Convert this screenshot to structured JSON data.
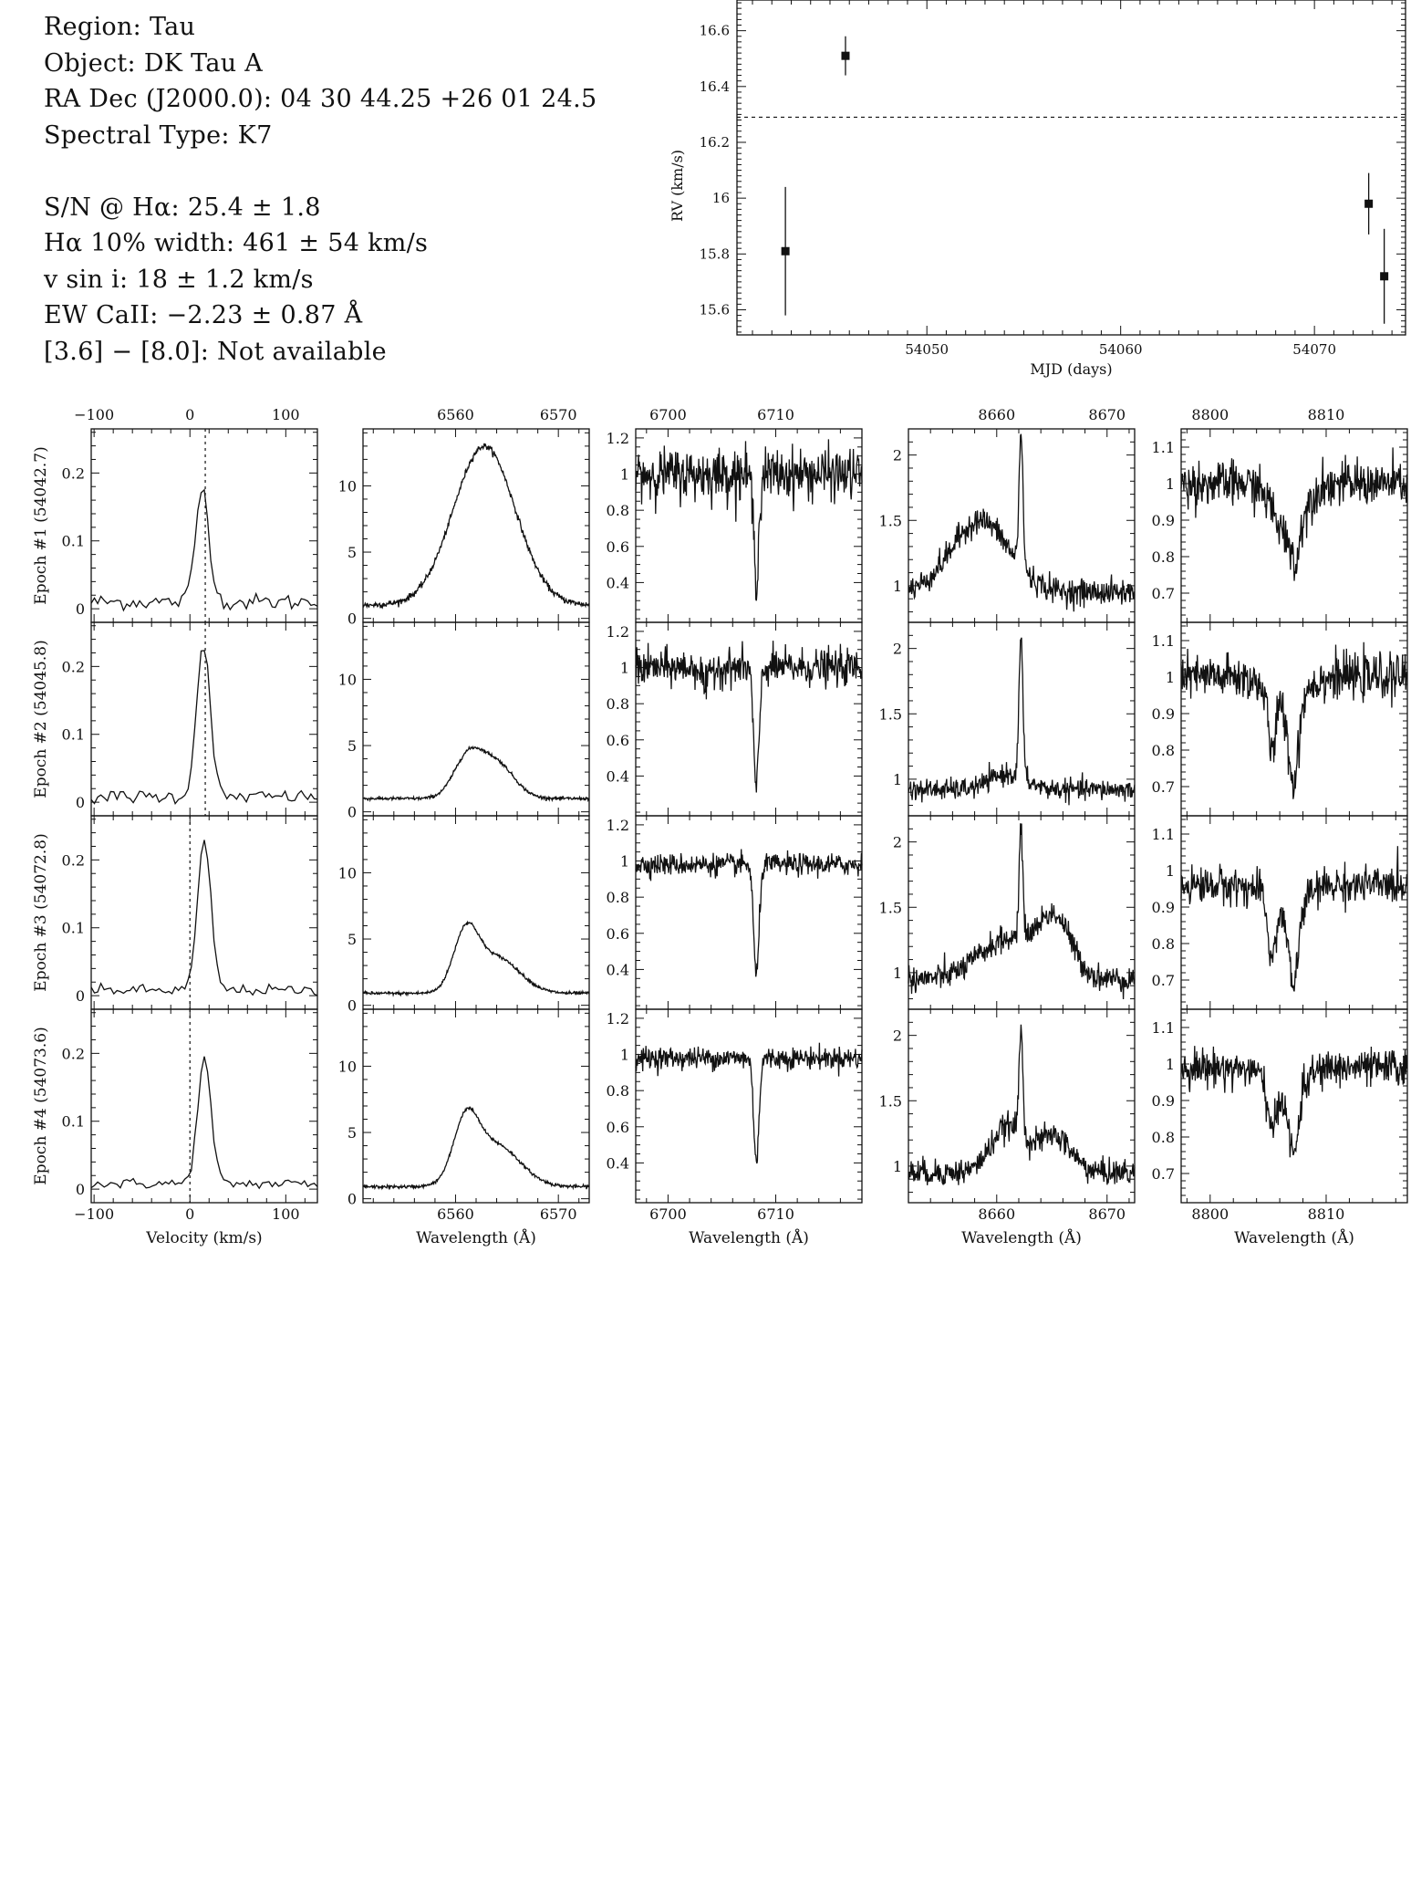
{
  "info": {
    "region": "Region: Tau",
    "object": "Object: DK Tau A",
    "radec": "RA Dec (J2000.0): 04 30 44.25 +26 01 24.5",
    "sptype": "Spectral Type: K7",
    "sn": "S/N @ Hα: 25.4 ± 1.8",
    "ha_width": "Hα 10% width: 461 ± 54 km/s",
    "vsini": "v sin i: 18 ± 1.2 km/s",
    "ew_caii": "EW CaII: −2.23 ± 0.87 Å",
    "irac": "[3.6] − [8.0]: Not available"
  },
  "chart_data": [
    {
      "type": "scatter",
      "xlabel": "MJD (days)",
      "ylabel": "RV (km/s)",
      "xlim": [
        54040.2,
        54074.7
      ],
      "ylim": [
        15.51,
        16.71
      ],
      "xticks": [
        54050,
        54060,
        54070
      ],
      "yticks": [
        15.6,
        15.8,
        16.0,
        16.2,
        16.4,
        16.6
      ],
      "ytick_labels": [
        "15.6",
        "15.8",
        "16",
        "16.2",
        "16.4",
        "16.6"
      ],
      "mean_line": 16.29,
      "points": [
        {
          "x": 54042.7,
          "y": 15.81,
          "err": 0.23
        },
        {
          "x": 54045.8,
          "y": 16.51,
          "err": 0.07
        },
        {
          "x": 54072.8,
          "y": 15.98,
          "err": 0.11
        },
        {
          "x": 54073.6,
          "y": 15.72,
          "err": 0.17
        }
      ]
    },
    {
      "type": "line",
      "panel_grid": "4 epochs x 5 spectral windows",
      "epochs": [
        "Epoch #1 (54042.7)",
        "Epoch #2 (54045.8)",
        "Epoch #3 (54072.8)",
        "Epoch #4 (54073.6)"
      ],
      "columns": [
        {
          "xlabel": "Velocity (km/s)",
          "xlim": [
            -103,
            133
          ],
          "xticks": [
            -100,
            0,
            100
          ],
          "xtick_labels": [
            "−100",
            "0",
            "100"
          ],
          "ylim": [
            -0.02,
            0.265
          ],
          "yticks": [
            0,
            0.1,
            0.2
          ],
          "ytick_labels": [
            "0",
            "0.1",
            "0.2"
          ],
          "rv_marker": [
            16,
            16,
            0,
            0
          ],
          "features": [
            {
              "base": 0.01,
              "noise": 0.006,
              "lines": [
                {
                  "c": 13,
                  "w": 7,
                  "a": 0.168
                }
              ]
            },
            {
              "base": 0.008,
              "noise": 0.005,
              "lines": [
                {
                  "c": 14,
                  "w": 7,
                  "a": 0.228
                }
              ]
            },
            {
              "base": 0.008,
              "noise": 0.004,
              "lines": [
                {
                  "c": 15,
                  "w": 7,
                  "a": 0.218
                }
              ]
            },
            {
              "base": 0.008,
              "noise": 0.004,
              "lines": [
                {
                  "c": 15,
                  "w": 7,
                  "a": 0.183
                }
              ]
            }
          ]
        },
        {
          "xlabel": "Wavelength (Å)",
          "xlim": [
            6551,
            6573
          ],
          "xticks": [
            6560,
            6570
          ],
          "xtick_labels": [
            "6560",
            "6570"
          ],
          "ylim": [
            -0.3,
            14.3
          ],
          "yticks": [
            0,
            5,
            10
          ],
          "ytick_labels": [
            "0",
            "5",
            "10"
          ],
          "features": [
            {
              "base": 1.0,
              "noise": 0.12,
              "lines": [
                {
                  "c": 6562.8,
                  "w": 3.0,
                  "a": 12.0
                }
              ]
            },
            {
              "base": 1.0,
              "noise": 0.06,
              "lines": [
                {
                  "c": 6561.2,
                  "w": 1.4,
                  "a": 3.0
                },
                {
                  "c": 6564.0,
                  "w": 1.7,
                  "a": 2.6
                }
              ]
            },
            {
              "base": 0.9,
              "noise": 0.06,
              "lines": [
                {
                  "c": 6561.0,
                  "w": 1.2,
                  "a": 4.2
                },
                {
                  "c": 6564.0,
                  "w": 2.2,
                  "a": 2.7
                }
              ]
            },
            {
              "base": 0.9,
              "noise": 0.06,
              "lines": [
                {
                  "c": 6561.0,
                  "w": 1.2,
                  "a": 4.2
                },
                {
                  "c": 6563.8,
                  "w": 2.4,
                  "a": 3.2
                }
              ]
            }
          ]
        },
        {
          "xlabel": "Wavelength (Å)",
          "xlim": [
            6697,
            6718
          ],
          "xticks": [
            6700,
            6710
          ],
          "xtick_labels": [
            "6700",
            "6710"
          ],
          "ylim": [
            0.18,
            1.25
          ],
          "yticks": [
            0.4,
            0.6,
            0.8,
            1.0,
            1.2
          ],
          "ytick_labels": [
            "0.4",
            "0.6",
            "0.8",
            "1",
            "1.2"
          ],
          "features": [
            {
              "base": 1.0,
              "noise": 0.07,
              "lines": [
                {
                  "c": 6708.2,
                  "w": 0.25,
                  "a": -0.55
                }
              ]
            },
            {
              "base": 1.0,
              "noise": 0.05,
              "lines": [
                {
                  "c": 6708.2,
                  "w": 0.25,
                  "a": -0.68
                },
                {
                  "c": 6703.5,
                  "w": 0.25,
                  "a": -0.12
                }
              ]
            },
            {
              "base": 0.98,
              "noise": 0.03,
              "lines": [
                {
                  "c": 6708.2,
                  "w": 0.25,
                  "a": -0.62
                }
              ]
            },
            {
              "base": 0.98,
              "noise": 0.03,
              "lines": [
                {
                  "c": 6708.2,
                  "w": 0.25,
                  "a": -0.56
                }
              ]
            }
          ]
        },
        {
          "xlabel": "Wavelength (Å)",
          "xlim": [
            8652,
            8672.5
          ],
          "xticks": [
            8660,
            8670
          ],
          "xtick_labels": [
            "8660",
            "8670"
          ],
          "ylim": [
            0.72,
            2.2
          ],
          "yticks": [
            1.0,
            1.5,
            2.0
          ],
          "ytick_labels": [
            "1",
            "1.5",
            "2"
          ],
          "features": [
            {
              "base": 0.95,
              "noise": 0.05,
              "lines": [
                {
                  "c": 8658.5,
                  "w": 2.6,
                  "a": 0.55
                },
                {
                  "c": 8662.2,
                  "w": 0.18,
                  "a": 1.0
                }
              ]
            },
            {
              "base": 0.92,
              "noise": 0.04,
              "lines": [
                {
                  "c": 8661,
                  "w": 1.6,
                  "a": 0.12
                },
                {
                  "c": 8662.2,
                  "w": 0.18,
                  "a": 1.05
                }
              ]
            },
            {
              "base": 0.95,
              "noise": 0.05,
              "lines": [
                {
                  "c": 8661,
                  "w": 2.6,
                  "a": 0.3
                },
                {
                  "c": 8662.2,
                  "w": 0.18,
                  "a": 0.78
                },
                {
                  "c": 8665.3,
                  "w": 1.5,
                  "a": 0.42
                }
              ]
            },
            {
              "base": 0.95,
              "noise": 0.05,
              "lines": [
                {
                  "c": 8661,
                  "w": 1.5,
                  "a": 0.35
                },
                {
                  "c": 8662.2,
                  "w": 0.18,
                  "a": 0.78
                },
                {
                  "c": 8665.2,
                  "w": 1.5,
                  "a": 0.28
                }
              ]
            }
          ]
        },
        {
          "xlabel": "Wavelength (Å)",
          "xlim": [
            8797.5,
            8817
          ],
          "xticks": [
            8800,
            8810
          ],
          "xtick_labels": [
            "8800",
            "8810"
          ],
          "ylim": [
            0.62,
            1.15
          ],
          "yticks": [
            0.7,
            0.8,
            0.9,
            1.0,
            1.1
          ],
          "ytick_labels": [
            "0.7",
            "0.8",
            "0.9",
            "1",
            "1.1"
          ],
          "features": [
            {
              "base": 1.0,
              "noise": 0.03,
              "lines": [
                {
                  "c": 8806.8,
                  "w": 1.2,
                  "a": -0.15
                },
                {
                  "c": 8807.4,
                  "w": 0.25,
                  "a": -0.1
                }
              ]
            },
            {
              "base": 1.0,
              "noise": 0.03,
              "lines": [
                {
                  "c": 8805.3,
                  "w": 0.3,
                  "a": -0.15
                },
                {
                  "c": 8807.2,
                  "w": 0.4,
                  "a": -0.22
                },
                {
                  "c": 8806.5,
                  "w": 1.4,
                  "a": -0.08
                }
              ]
            },
            {
              "base": 0.96,
              "noise": 0.025,
              "lines": [
                {
                  "c": 8805.3,
                  "w": 0.3,
                  "a": -0.15
                },
                {
                  "c": 8807.2,
                  "w": 0.4,
                  "a": -0.2
                },
                {
                  "c": 8806.5,
                  "w": 1.4,
                  "a": -0.08
                }
              ]
            },
            {
              "base": 0.99,
              "noise": 0.025,
              "lines": [
                {
                  "c": 8805.3,
                  "w": 0.3,
                  "a": -0.13
                },
                {
                  "c": 8807.2,
                  "w": 0.4,
                  "a": -0.17
                },
                {
                  "c": 8806.5,
                  "w": 1.4,
                  "a": -0.08
                }
              ]
            }
          ]
        }
      ]
    }
  ]
}
